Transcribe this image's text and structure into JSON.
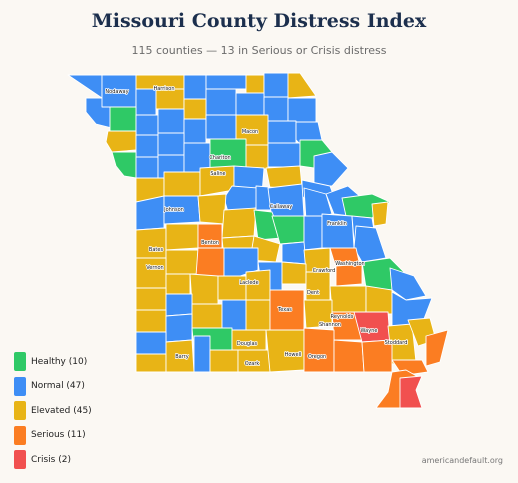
{
  "header": {
    "title": "Missouri County Distress Index",
    "subtitle": "115 counties — 13 in Serious or Crisis distress"
  },
  "legend": {
    "items": [
      {
        "key": "healthy",
        "label": "Healthy (10)",
        "color": "#2fc966"
      },
      {
        "key": "normal",
        "label": "Normal (47)",
        "color": "#3e8ef5"
      },
      {
        "key": "elevated",
        "label": "Elevated (45)",
        "color": "#e8b416"
      },
      {
        "key": "serious",
        "label": "Serious (11)",
        "color": "#fb7d22"
      },
      {
        "key": "crisis",
        "label": "Crisis (2)",
        "color": "#f1504f"
      }
    ]
  },
  "map": {
    "county_labels": [
      {
        "name": "Nodaway",
        "status": "normal"
      },
      {
        "name": "Harrison",
        "status": "elevated"
      },
      {
        "name": "Macon",
        "status": "elevated"
      },
      {
        "name": "Chariton",
        "status": "healthy"
      },
      {
        "name": "Saline",
        "status": "elevated"
      },
      {
        "name": "Johnson",
        "status": "normal"
      },
      {
        "name": "Callaway",
        "status": "normal"
      },
      {
        "name": "Franklin",
        "status": "normal"
      },
      {
        "name": "Benton",
        "status": "serious"
      },
      {
        "name": "Bates",
        "status": "elevated"
      },
      {
        "name": "Vernon",
        "status": "elevated"
      },
      {
        "name": "Washington",
        "status": "serious"
      },
      {
        "name": "Crawford",
        "status": "elevated"
      },
      {
        "name": "Laclede",
        "status": "elevated"
      },
      {
        "name": "Dent",
        "status": "elevated"
      },
      {
        "name": "Texas",
        "status": "serious"
      },
      {
        "name": "Reynolds",
        "status": "elevated"
      },
      {
        "name": "Shannon",
        "status": "elevated"
      },
      {
        "name": "Wayne",
        "status": "crisis"
      },
      {
        "name": "Stoddard",
        "status": "elevated"
      },
      {
        "name": "Douglas",
        "status": "elevated"
      },
      {
        "name": "Ozark",
        "status": "elevated"
      },
      {
        "name": "Barry",
        "status": "elevated"
      },
      {
        "name": "Howell",
        "status": "elevated"
      },
      {
        "name": "Oregon",
        "status": "serious"
      }
    ]
  },
  "footer": {
    "source": "americandefault.org"
  }
}
